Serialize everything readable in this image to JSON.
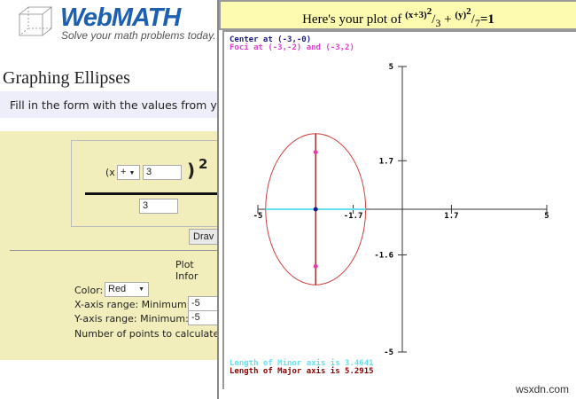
{
  "header": {
    "logo_text": "WebMATH",
    "tagline": "Solve your math problems today.",
    "logo_icon": "cube-icon"
  },
  "page_title": "Graphing Ellipses",
  "instructions": "Fill in the form with the values from yo",
  "form": {
    "x_prefix": "(x",
    "sign": "+",
    "x_value": "3",
    "paren_close": ")",
    "exponent": "2",
    "denominator": "3",
    "draw_label": "Drav",
    "plot_info": "Plot Infor",
    "color_label": "Color:",
    "color_value": "Red",
    "xrange_label": "X-axis range: Minimum:",
    "xrange_min": "-5",
    "yrange_label": "Y-axis range: Minimum:",
    "yrange_min": "-5",
    "points_label": "Number of points to calculate a"
  },
  "plot": {
    "title_prefix": "Here's your plot of",
    "eq_num1": "(x+3)",
    "eq_exp1": "2",
    "eq_den1": "3",
    "plus": "+",
    "eq_num2": "(y)",
    "eq_exp2": "2",
    "eq_den2": "7",
    "eq_rhs": "=1",
    "center_text": "Center at (-3,-0)",
    "foci_text": "Foci at (-3,-2) and (-3,2)",
    "minor_text": "Length of Minor axis is 3.4641",
    "major_text": "Length of Major axis is 5.2915",
    "x_ticks": [
      "-5",
      "-1.7",
      "1.7",
      "5"
    ],
    "y_ticks": [
      "5",
      "1.7",
      "-1.6",
      "-5"
    ],
    "colors": {
      "ellipse": "#d04040",
      "major": "#8b0000",
      "minor": "#66e0f0",
      "foci": "#e040a0",
      "center": "#1a1a80"
    }
  },
  "chart_data": {
    "type": "line",
    "title": "",
    "ellipse": {
      "center": [
        -3,
        0
      ],
      "a_x": 1.7321,
      "b_y": 2.6458,
      "foci": [
        [
          -3,
          -2
        ],
        [
          -3,
          2
        ]
      ]
    },
    "xlim": [
      -5,
      5
    ],
    "ylim": [
      -5,
      5
    ],
    "x_tick_labels": [
      "-5",
      "-1.7",
      "1.7",
      "5"
    ],
    "y_tick_labels": [
      "5",
      "1.7",
      "-1.6",
      "-5"
    ]
  },
  "watermark": "wsxdn.com"
}
